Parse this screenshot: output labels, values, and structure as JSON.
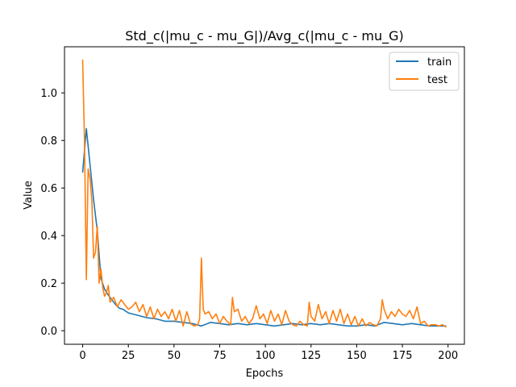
{
  "chart_data": {
    "type": "line",
    "title": "Std_c(|mu_c - mu_G|)/Avg_c(|mu_c - mu_G)",
    "xlabel": "Epochs",
    "ylabel": "Value",
    "xlim": [
      -9.95,
      208.95
    ],
    "ylim": [
      -0.057,
      1.194
    ],
    "xticks": [
      0,
      25,
      50,
      75,
      100,
      125,
      150,
      175,
      200
    ],
    "yticks": [
      0.0,
      0.2,
      0.4,
      0.6,
      0.8,
      1.0
    ],
    "xtick_labels": [
      "0",
      "25",
      "50",
      "75",
      "100",
      "125",
      "150",
      "175",
      "200"
    ],
    "ytick_labels": [
      "0.0",
      "0.2",
      "0.4",
      "0.6",
      "0.8",
      "1.0"
    ],
    "grid": false,
    "legend": "top-right",
    "series": [
      {
        "name": "train",
        "color": "#1f77b4",
        "x": [
          0,
          2,
          4,
          6,
          8,
          10,
          12,
          14,
          16,
          18,
          20,
          22,
          25,
          30,
          35,
          40,
          45,
          50,
          55,
          60,
          65,
          70,
          75,
          80,
          85,
          90,
          95,
          100,
          105,
          110,
          115,
          120,
          125,
          130,
          135,
          140,
          145,
          150,
          155,
          160,
          165,
          170,
          175,
          180,
          185,
          190,
          195,
          199
        ],
        "values": [
          0.665,
          0.85,
          0.7,
          0.55,
          0.42,
          0.22,
          0.175,
          0.15,
          0.13,
          0.11,
          0.095,
          0.09,
          0.075,
          0.065,
          0.055,
          0.05,
          0.04,
          0.04,
          0.035,
          0.03,
          0.02,
          0.035,
          0.03,
          0.025,
          0.03,
          0.025,
          0.03,
          0.025,
          0.02,
          0.025,
          0.03,
          0.025,
          0.03,
          0.025,
          0.03,
          0.025,
          0.02,
          0.02,
          0.025,
          0.02,
          0.035,
          0.03,
          0.025,
          0.03,
          0.025,
          0.02,
          0.02,
          0.02
        ]
      },
      {
        "name": "test",
        "color": "#ff7f0e",
        "x": [
          0,
          1,
          2,
          3,
          4,
          5,
          6,
          7,
          8,
          9,
          10,
          11,
          12,
          13,
          14,
          15,
          17,
          19,
          21,
          23,
          25,
          27,
          29,
          31,
          33,
          35,
          37,
          39,
          41,
          43,
          45,
          47,
          49,
          51,
          53,
          55,
          57,
          59,
          61,
          63,
          64,
          65,
          66,
          67,
          69,
          71,
          73,
          75,
          77,
          79,
          81,
          82,
          83,
          85,
          87,
          89,
          91,
          93,
          95,
          97,
          99,
          101,
          103,
          105,
          107,
          109,
          111,
          113,
          115,
          117,
          119,
          121,
          123,
          124,
          125,
          127,
          129,
          131,
          133,
          135,
          137,
          139,
          141,
          143,
          145,
          147,
          149,
          151,
          153,
          155,
          157,
          159,
          161,
          163,
          164,
          165,
          167,
          169,
          171,
          173,
          175,
          177,
          179,
          181,
          183,
          185,
          187,
          189,
          191,
          193,
          195,
          197,
          199
        ],
        "values": [
          1.14,
          0.8,
          0.215,
          0.68,
          0.64,
          0.55,
          0.305,
          0.33,
          0.44,
          0.2,
          0.26,
          0.18,
          0.145,
          0.16,
          0.19,
          0.12,
          0.14,
          0.1,
          0.13,
          0.11,
          0.09,
          0.1,
          0.12,
          0.08,
          0.11,
          0.06,
          0.1,
          0.05,
          0.09,
          0.06,
          0.08,
          0.05,
          0.09,
          0.04,
          0.085,
          0.02,
          0.08,
          0.03,
          0.02,
          0.025,
          0.05,
          0.305,
          0.09,
          0.07,
          0.08,
          0.05,
          0.07,
          0.03,
          0.06,
          0.04,
          0.025,
          0.14,
          0.08,
          0.09,
          0.04,
          0.06,
          0.03,
          0.05,
          0.105,
          0.05,
          0.07,
          0.03,
          0.085,
          0.04,
          0.07,
          0.025,
          0.085,
          0.04,
          0.025,
          0.02,
          0.04,
          0.025,
          0.02,
          0.12,
          0.06,
          0.04,
          0.11,
          0.05,
          0.08,
          0.03,
          0.085,
          0.04,
          0.09,
          0.03,
          0.07,
          0.025,
          0.06,
          0.02,
          0.05,
          0.02,
          0.035,
          0.025,
          0.02,
          0.05,
          0.13,
          0.09,
          0.05,
          0.08,
          0.06,
          0.09,
          0.07,
          0.06,
          0.085,
          0.05,
          0.1,
          0.03,
          0.04,
          0.02,
          0.025,
          0.025,
          0.02,
          0.025,
          0.015
        ]
      }
    ]
  }
}
